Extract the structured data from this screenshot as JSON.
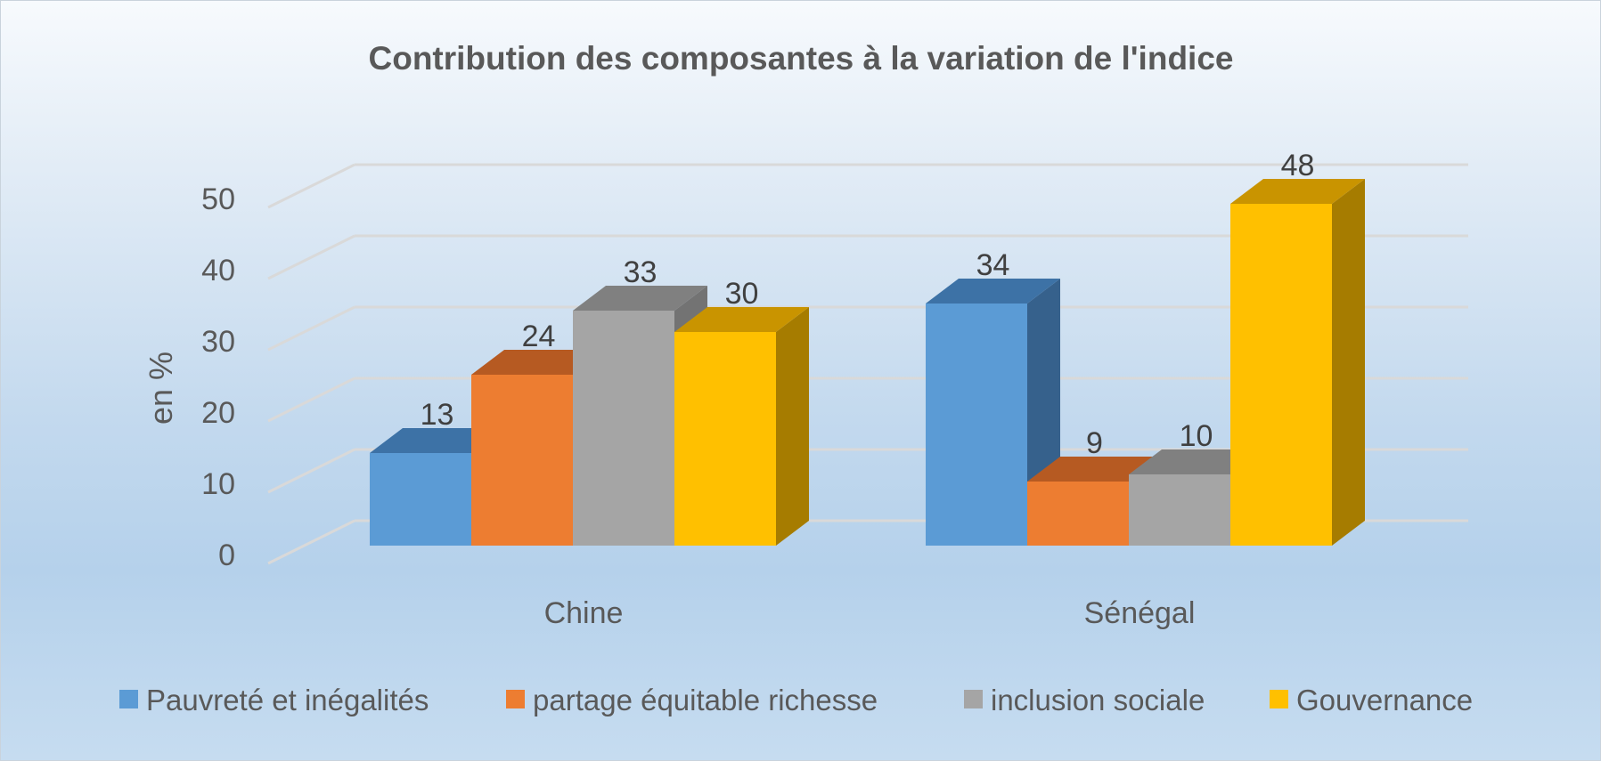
{
  "chart_data": {
    "type": "bar",
    "title": "Contribution des composantes à la variation de l'indice",
    "xlabel": "",
    "ylabel": "en %",
    "ylim": [
      0,
      50
    ],
    "yticks": [
      0,
      10,
      20,
      30,
      40,
      50
    ],
    "grid": true,
    "legend_position": "bottom",
    "categories": [
      "Chine",
      "Sénégal"
    ],
    "series": [
      {
        "name": "Pauvreté et inégalités",
        "values": [
          13,
          34
        ],
        "color": "#5b9bd5",
        "top_color": "#3d72a6",
        "side_color": "#36618c"
      },
      {
        "name": "partage équitable richesse",
        "values": [
          24,
          9
        ],
        "color": "#ed7d31",
        "top_color": "#b65a22",
        "side_color": "#a1501e"
      },
      {
        "name": "inclusion sociale",
        "values": [
          33,
          10
        ],
        "color": "#a5a5a5",
        "top_color": "#808080",
        "side_color": "#737373"
      },
      {
        "name": "Gouvernance",
        "values": [
          30,
          48
        ],
        "color": "#ffc000",
        "top_color": "#c99400",
        "side_color": "#a67c00"
      }
    ]
  }
}
